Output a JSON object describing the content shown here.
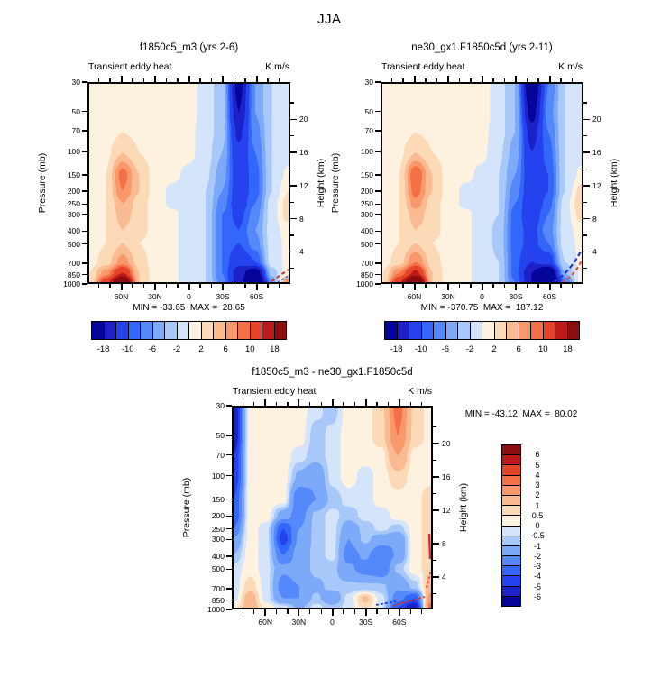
{
  "figure_title": "JJA",
  "chart_data": {
    "type": "contour",
    "variable": "Transient eddy heat",
    "units": "K m/s",
    "x_axis": {
      "tick_labels": [
        "60N",
        "30N",
        "0",
        "30S",
        "60S"
      ],
      "tick_lat_degrees": [
        60,
        30,
        0,
        -30,
        -60
      ],
      "range_degrees": [
        90,
        -90
      ]
    },
    "pressure_axis": {
      "label": "Pressure (mb)",
      "scale": "log",
      "ticks": [
        30,
        50,
        70,
        100,
        150,
        200,
        250,
        300,
        400,
        500,
        700,
        850,
        1000
      ]
    },
    "height_axis": {
      "label": "Height (km)",
      "major_ticks": [
        20,
        16,
        12,
        8,
        4
      ],
      "minor_ticks": [
        22,
        18,
        14,
        10,
        6,
        2
      ]
    },
    "grid_lats": [
      90,
      75,
      60,
      45,
      30,
      15,
      0,
      -15,
      -30,
      -45,
      -60,
      -75,
      -90
    ],
    "palette_blue_to_red": [
      "#05059c",
      "#1c22c8",
      "#2442ee",
      "#3366fb",
      "#5588fb",
      "#7da9f9",
      "#a7c8f8",
      "#d4e4fa",
      "#fdf1e0",
      "#fcd9b7",
      "#fbbb92",
      "#f9986a",
      "#f47148",
      "#e54428",
      "#bb1a18",
      "#8b0d0e"
    ],
    "colorbar_main": {
      "levels": [
        -18,
        -14,
        -10,
        -8,
        -6,
        -4,
        -2,
        0,
        2,
        4,
        6,
        8,
        10,
        14,
        18
      ],
      "tick_labels": [
        "-18",
        "-10",
        "-6",
        "-2",
        "2",
        "6",
        "10",
        "18"
      ],
      "label_boundary_index": [
        1,
        3,
        5,
        7,
        9,
        11,
        13,
        15
      ]
    },
    "colorbar_diff": {
      "levels": [
        -6,
        -5,
        -4,
        -3,
        -2,
        -1,
        -0.5,
        0,
        0.5,
        1,
        2,
        3,
        4,
        5,
        6
      ],
      "tick_labels_top_to_bottom": [
        "6",
        "5",
        "4",
        "3",
        "2",
        "1",
        "0.5",
        "0",
        "-0.5",
        "-1",
        "-2",
        "-3",
        "-4",
        "-5",
        "-6"
      ]
    },
    "panels": [
      {
        "id": "a",
        "title": "f1850c5_m3 (yrs 2-6)",
        "subtitle_left": "Transient eddy heat",
        "subtitle_right": "K m/s",
        "minmax": "MIN = -33.65  MAX =  28.65",
        "min": -33.65,
        "max": 28.65,
        "colorbar": "main",
        "values": [
          [
            1,
            1,
            1,
            1,
            1,
            1,
            1,
            -1,
            -3,
            -20,
            -6,
            -2,
            -1
          ],
          [
            1,
            1,
            1.5,
            1,
            1,
            1,
            1,
            -1,
            -3,
            -18,
            -6,
            -2,
            -1
          ],
          [
            1,
            1,
            2,
            1.5,
            1,
            1,
            0.5,
            -1,
            -3,
            -15,
            -7,
            -2,
            -1
          ],
          [
            1,
            1.5,
            4,
            2,
            1,
            1,
            0.5,
            -1,
            -4,
            -13,
            -8,
            -2,
            -1
          ],
          [
            1,
            2,
            9,
            4,
            1,
            0.5,
            -0.5,
            -1.5,
            -5,
            -12,
            -9,
            -2,
            0.5
          ],
          [
            1,
            2,
            8,
            4,
            1,
            -0.5,
            -1,
            -2,
            -6,
            -12,
            -9,
            -2,
            2
          ],
          [
            1,
            2,
            6,
            3,
            1,
            -0.5,
            -1,
            -2,
            -7,
            -12,
            -8,
            -1,
            3
          ],
          [
            1,
            2,
            5,
            3,
            1,
            0.5,
            -1,
            -2,
            -8,
            -11,
            -7,
            -1,
            3
          ],
          [
            1,
            2,
            4,
            3,
            1,
            0.5,
            -1,
            -2,
            -8,
            -10,
            -6,
            -1,
            1
          ],
          [
            1,
            2,
            4,
            2,
            1,
            0.5,
            -1,
            -2,
            -8,
            -10,
            -7,
            -1,
            0.5
          ],
          [
            1,
            3,
            7,
            3,
            1,
            0.5,
            -1,
            -2,
            -8,
            -13,
            -10,
            -1,
            0.5
          ],
          [
            2,
            7,
            14,
            4,
            1,
            0.5,
            -1,
            -2,
            -8,
            -16,
            -22,
            -3,
            1
          ],
          [
            2,
            12,
            26,
            4,
            1,
            0.5,
            -1,
            -2,
            -7,
            -16,
            -28,
            -6,
            8
          ]
        ]
      },
      {
        "id": "b",
        "title": "ne30_gx1.F1850c5d (yrs 2-11)",
        "subtitle_left": "Transient eddy heat",
        "subtitle_right": "K m/s",
        "minmax": "MIN = -370.75  MAX =  187.12",
        "min": -370.75,
        "max": 187.12,
        "colorbar": "main",
        "values": [
          [
            1,
            1,
            1,
            1,
            1,
            1,
            1,
            -1,
            -4,
            -24,
            -8,
            -2,
            -1
          ],
          [
            1,
            1,
            1.5,
            1,
            1,
            1,
            1,
            -1,
            -4,
            -20,
            -7,
            -2,
            -1
          ],
          [
            1,
            1,
            2,
            1.5,
            1,
            1,
            0.5,
            -1,
            -4,
            -16,
            -8,
            -2,
            -1
          ],
          [
            1,
            1.5,
            4,
            2,
            1,
            1,
            0.5,
            -1.5,
            -5,
            -14,
            -9,
            -2,
            -1
          ],
          [
            1,
            2,
            10,
            4,
            1,
            0.5,
            -0.5,
            -2,
            -6,
            -13,
            -10,
            -2,
            0.5
          ],
          [
            1,
            2,
            9,
            4,
            1,
            -0.5,
            -1,
            -2,
            -7,
            -13,
            -10,
            -2,
            3
          ],
          [
            1,
            2,
            7,
            3,
            1,
            -0.5,
            -1,
            -2,
            -8,
            -13,
            -9,
            -1,
            4
          ],
          [
            1,
            2,
            5,
            3,
            1,
            0.5,
            -1,
            -2,
            -9,
            -12,
            -8,
            -1,
            3
          ],
          [
            1,
            2,
            4,
            3,
            1,
            0.5,
            -1,
            -2.5,
            -9,
            -11,
            -7,
            -1,
            1
          ],
          [
            1,
            2,
            4,
            2,
            1,
            0.5,
            -1,
            -2.5,
            -9,
            -11,
            -8,
            -1,
            0.5
          ],
          [
            1,
            3,
            8,
            3,
            1,
            0.5,
            -1,
            -2,
            -9,
            -14,
            -12,
            -2,
            0.5
          ],
          [
            2,
            8,
            15,
            4,
            1,
            0.5,
            -1,
            -2,
            -9,
            -18,
            -26,
            -4,
            0.5
          ],
          [
            2,
            13,
            28,
            4,
            1,
            0.5,
            -1,
            -2,
            -8,
            -18,
            -34,
            -8,
            1
          ]
        ]
      },
      {
        "id": "diff",
        "title": "f1850c5_m3 - ne30_gx1.F1850c5d",
        "subtitle_left": "Transient eddy heat",
        "subtitle_right": "K m/s",
        "minmax": "MIN = -43.12  MAX =  80.02",
        "min": -43.12,
        "max": 80.02,
        "colorbar": "diff",
        "values": [
          [
            -6,
            0.3,
            0.3,
            0.3,
            0.3,
            -0.3,
            -0.8,
            0.3,
            0.3,
            0.8,
            3.5,
            0.8,
            0.3
          ],
          [
            -6,
            0.3,
            0.3,
            0.3,
            0.3,
            -0.8,
            -0.3,
            0.3,
            0.3,
            0.8,
            3,
            0.8,
            0.3
          ],
          [
            -5,
            0.3,
            0.3,
            0.3,
            -0.3,
            -0.8,
            -0.3,
            0.3,
            0.3,
            0.3,
            2,
            0.3,
            0.3
          ],
          [
            -5,
            0.3,
            0.3,
            0.3,
            -1.2,
            -1.8,
            -0.3,
            0.3,
            -0.3,
            0.3,
            0.8,
            0.3,
            0.3
          ],
          [
            -4,
            0.3,
            0.3,
            0.3,
            -3,
            -2,
            -0.8,
            -0.3,
            -0.3,
            0.3,
            0.3,
            0.3,
            0.8
          ],
          [
            -4,
            0.3,
            0.3,
            -1.5,
            -2.5,
            -0.8,
            -0.3,
            -0.8,
            -0.3,
            -0.3,
            0.3,
            0.3,
            0.8
          ],
          [
            -3,
            0.3,
            -0.3,
            -4,
            -2,
            -0.8,
            -0.3,
            -1.5,
            -0.8,
            -0.3,
            -0.8,
            0.3,
            0.8
          ],
          [
            -2,
            0.3,
            -0.3,
            -4.5,
            -1.8,
            -0.8,
            -0.3,
            -2,
            -0.8,
            -1.5,
            -1.8,
            0.3,
            0.8
          ],
          [
            -1,
            0.3,
            -0.3,
            -3,
            -1.5,
            -0.8,
            -0.3,
            -2.5,
            -1.8,
            -3,
            -1.8,
            0.3,
            0.8
          ],
          [
            -0.3,
            0.3,
            -0.3,
            -1.8,
            -1.5,
            -0.8,
            -0.8,
            -1.8,
            -2.5,
            -3,
            -0.8,
            0.3,
            0.8
          ],
          [
            -0.3,
            0.8,
            -0.3,
            -2.5,
            -2,
            -1.2,
            -0.8,
            -0.8,
            -0.8,
            -0.8,
            -1.8,
            -0.8,
            1.5
          ],
          [
            -0.3,
            1.5,
            -0.3,
            -2,
            -2,
            -0.8,
            -1.8,
            -0.3,
            1.2,
            -0.3,
            -2.5,
            -4,
            2.5
          ],
          [
            0.3,
            1.5,
            0.3,
            -0.3,
            -1.2,
            -0.3,
            -0.8,
            -0.3,
            0.8,
            -0.3,
            -4,
            -6,
            3.5
          ]
        ]
      }
    ]
  }
}
